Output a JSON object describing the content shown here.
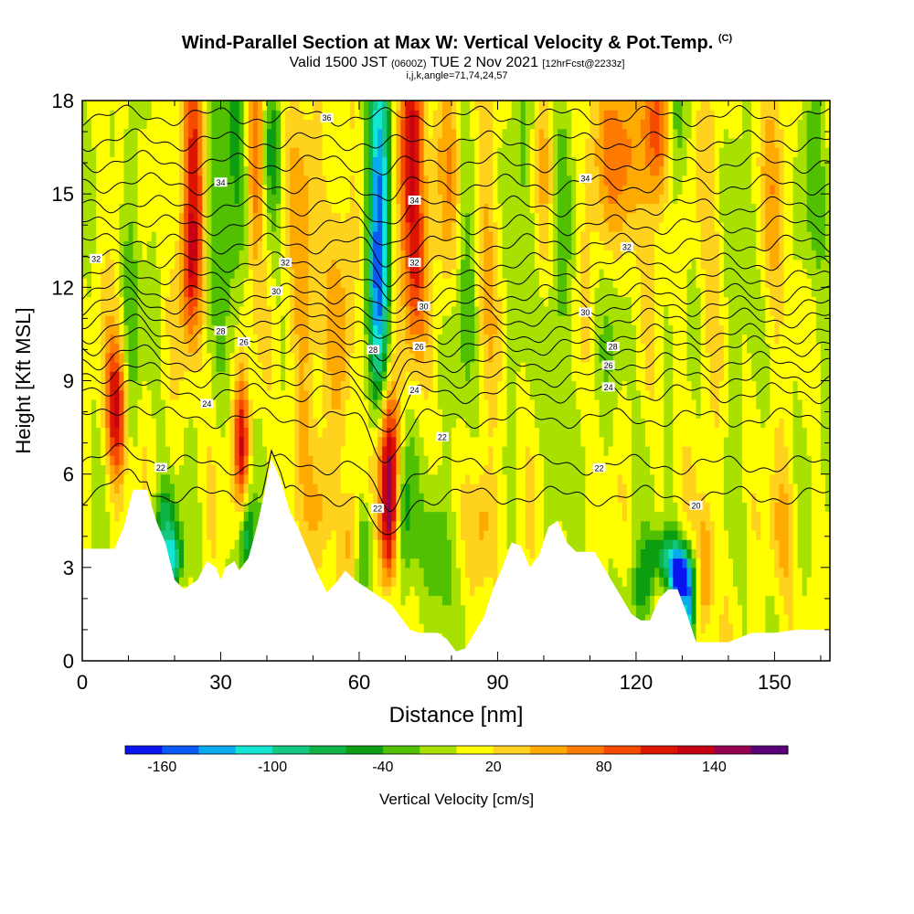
{
  "header": {
    "title_main": "Wind-Parallel Section at Max W: Vertical Velocity & Pot.Temp.",
    "title_mark": "(C)",
    "sub_a": "Valid 1500 JST",
    "sub_b": "(0600Z)",
    "sub_c": "TUE 2 Nov 2021",
    "sub_d": "[12hrFcst@2233z]",
    "sub_line2": "i,j,k,angle=71,74,24,57"
  },
  "colors": {
    "scale": [
      "#0a14f0",
      "#0a5af5",
      "#0aaaf0",
      "#10e6d2",
      "#14c882",
      "#0fb446",
      "#0c9e10",
      "#50c000",
      "#a8e000",
      "#ffff00",
      "#ffd21e",
      "#ffaa00",
      "#ff7a00",
      "#f54a00",
      "#dc1400",
      "#c80014",
      "#960050",
      "#5a0078"
    ],
    "terrain": "#ffffff",
    "contour": "#000000"
  },
  "chart_data": {
    "type": "heatmap",
    "xlabel": "Distance [nm]",
    "ylabel": "Height [Kft MSL]",
    "xlim": [
      0,
      162
    ],
    "ylim": [
      0,
      18
    ],
    "xticks": [
      "0",
      "30",
      "60",
      "90",
      "120",
      "150"
    ],
    "yticks": [
      "0",
      "3",
      "6",
      "9",
      "12",
      "15",
      "18"
    ],
    "colorbar": {
      "label": "Vertical Velocity [cm/s]",
      "tick_labels": [
        "-160",
        "-100",
        "-40",
        "20",
        "80",
        "140"
      ],
      "levels": [
        -180,
        -160,
        -140,
        -120,
        -100,
        -80,
        -60,
        -40,
        -20,
        0,
        20,
        40,
        60,
        80,
        100,
        120,
        140,
        160
      ]
    },
    "terrain_profile": [
      [
        0,
        3.6
      ],
      [
        7,
        3.6
      ],
      [
        9,
        4.3
      ],
      [
        11,
        5.5
      ],
      [
        14,
        5.5
      ],
      [
        16,
        4.5
      ],
      [
        18,
        3.8
      ],
      [
        20,
        2.6
      ],
      [
        22,
        2.3
      ],
      [
        25,
        2.6
      ],
      [
        27,
        3.2
      ],
      [
        29,
        3.0
      ],
      [
        30,
        2.6
      ],
      [
        31,
        3.0
      ],
      [
        33,
        3.2
      ],
      [
        34,
        2.9
      ],
      [
        35,
        3.1
      ],
      [
        36,
        3.3
      ],
      [
        38,
        4.4
      ],
      [
        40,
        5.8
      ],
      [
        41,
        6.5
      ],
      [
        43,
        5.8
      ],
      [
        45,
        4.8
      ],
      [
        47,
        4.2
      ],
      [
        49,
        3.5
      ],
      [
        51,
        2.8
      ],
      [
        53,
        2.2
      ],
      [
        55,
        2.5
      ],
      [
        57,
        2.9
      ],
      [
        59,
        2.6
      ],
      [
        61,
        2.4
      ],
      [
        63,
        2.2
      ],
      [
        65,
        2.0
      ],
      [
        67,
        1.8
      ],
      [
        69,
        1.4
      ],
      [
        71,
        1.0
      ],
      [
        73,
        0.9
      ],
      [
        75,
        0.9
      ],
      [
        77,
        0.9
      ],
      [
        79,
        0.7
      ],
      [
        81,
        0.3
      ],
      [
        83,
        0.4
      ],
      [
        85,
        0.9
      ],
      [
        87,
        1.4
      ],
      [
        89,
        2.3
      ],
      [
        91,
        3.0
      ],
      [
        93,
        3.8
      ],
      [
        95,
        3.7
      ],
      [
        97,
        3.0
      ],
      [
        99,
        3.4
      ],
      [
        101,
        4.3
      ],
      [
        103,
        4.5
      ],
      [
        105,
        3.8
      ],
      [
        107,
        3.5
      ],
      [
        109,
        3.5
      ],
      [
        111,
        3.5
      ],
      [
        113,
        3.0
      ],
      [
        115,
        2.5
      ],
      [
        117,
        2.0
      ],
      [
        119,
        1.5
      ],
      [
        121,
        1.3
      ],
      [
        123,
        1.3
      ],
      [
        125,
        2.0
      ],
      [
        127,
        2.3
      ],
      [
        129,
        2.3
      ],
      [
        131,
        1.5
      ],
      [
        133,
        0.6
      ],
      [
        135,
        0.6
      ],
      [
        140,
        0.6
      ],
      [
        145,
        0.9
      ],
      [
        150,
        0.9
      ],
      [
        155,
        1.0
      ],
      [
        162,
        1.0
      ]
    ],
    "velocity_cells": [
      {
        "x": 7.5,
        "z": 8.0,
        "w": 120,
        "sx": 1.6,
        "sz": 1.6
      },
      {
        "x": 8,
        "z": 14.0,
        "w": 20,
        "sx": 2.0,
        "sz": 3.0
      },
      {
        "x": 10.5,
        "z": 13.0,
        "w": -50,
        "sx": 1.4,
        "sz": 4.0
      },
      {
        "x": 18,
        "z": 4.3,
        "w": -70,
        "sx": 2.0,
        "sz": 0.9
      },
      {
        "x": 20,
        "z": 3.2,
        "w": -90,
        "sx": 1.5,
        "sz": 0.6
      },
      {
        "x": 24,
        "z": 16.0,
        "w": 100,
        "sx": 2.0,
        "sz": 3.0
      },
      {
        "x": 23.5,
        "z": 12.5,
        "w": 70,
        "sx": 1.5,
        "sz": 1.7
      },
      {
        "x": 29,
        "z": 16.0,
        "w": -45,
        "sx": 2.2,
        "sz": 3.0
      },
      {
        "x": 33,
        "z": 16.0,
        "w": -50,
        "sx": 1.5,
        "sz": 3.5
      },
      {
        "x": 34.5,
        "z": 7.0,
        "w": 110,
        "sx": 1.2,
        "sz": 1.6
      },
      {
        "x": 35.5,
        "z": 4.0,
        "w": -90,
        "sx": 1.2,
        "sz": 0.9
      },
      {
        "x": 37.5,
        "z": 16.0,
        "w": 80,
        "sx": 1.3,
        "sz": 2.5
      },
      {
        "x": 41,
        "z": 16.5,
        "w": -45,
        "sx": 1.5,
        "sz": 2.0
      },
      {
        "x": 48,
        "z": 12.0,
        "w": 50,
        "sx": 2.5,
        "sz": 4.0
      },
      {
        "x": 52,
        "z": 5.0,
        "w": 45,
        "sx": 1.8,
        "sz": 1.5
      },
      {
        "x": 56,
        "z": 12.0,
        "w": 40,
        "sx": 2.0,
        "sz": 4.0
      },
      {
        "x": 58.5,
        "z": 4.0,
        "w": 55,
        "sx": 1.5,
        "sz": 1.2
      },
      {
        "x": 61,
        "z": 3.8,
        "w": -60,
        "sx": 1.5,
        "sz": 1.1
      },
      {
        "x": 64.5,
        "z": 15.5,
        "w": -150,
        "sx": 1.7,
        "sz": 3.5
      },
      {
        "x": 64,
        "z": 11.0,
        "w": -60,
        "sx": 1.4,
        "sz": 2.5
      },
      {
        "x": 66.5,
        "z": 6.5,
        "w": 135,
        "sx": 1.7,
        "sz": 1.7
      },
      {
        "x": 66.5,
        "z": 4.0,
        "w": 90,
        "sx": 1.3,
        "sz": 1.3
      },
      {
        "x": 69.5,
        "z": 5.0,
        "w": -60,
        "sx": 1.5,
        "sz": 2.0
      },
      {
        "x": 71,
        "z": 16.5,
        "w": 125,
        "sx": 2.0,
        "sz": 2.5
      },
      {
        "x": 72,
        "z": 12.5,
        "w": 70,
        "sx": 1.8,
        "sz": 2.0
      },
      {
        "x": 77,
        "z": 3.5,
        "w": -55,
        "sx": 2.0,
        "sz": 1.5
      },
      {
        "x": 79,
        "z": 15.5,
        "w": 45,
        "sx": 2.5,
        "sz": 3.0
      },
      {
        "x": 83,
        "z": 13.0,
        "w": -40,
        "sx": 2.0,
        "sz": 4.0
      },
      {
        "x": 87,
        "z": 4.5,
        "w": 55,
        "sx": 2.0,
        "sz": 1.5
      },
      {
        "x": 88,
        "z": 14.5,
        "w": 40,
        "sx": 2.5,
        "sz": 3.5
      },
      {
        "x": 95,
        "z": 15.0,
        "w": -40,
        "sx": 2.5,
        "sz": 3.0
      },
      {
        "x": 100,
        "z": 15.0,
        "w": 40,
        "sx": 2.0,
        "sz": 3.0
      },
      {
        "x": 103,
        "z": 12.0,
        "w": -40,
        "sx": 2.0,
        "sz": 4.0
      },
      {
        "x": 113,
        "z": 16.0,
        "w": 50,
        "sx": 3.0,
        "sz": 3.0
      },
      {
        "x": 115,
        "z": 13.0,
        "w": -35,
        "sx": 2.5,
        "sz": 3.0
      },
      {
        "x": 118,
        "z": 16.0,
        "w": 60,
        "sx": 2.5,
        "sz": 2.5
      },
      {
        "x": 121,
        "z": 2.2,
        "w": -50,
        "sx": 2.0,
        "sz": 0.9
      },
      {
        "x": 124.5,
        "z": 17.0,
        "w": 100,
        "sx": 2.0,
        "sz": 2.0
      },
      {
        "x": 126.5,
        "z": 3.4,
        "w": -70,
        "sx": 3.0,
        "sz": 0.6
      },
      {
        "x": 128.5,
        "z": 17.0,
        "w": -50,
        "sx": 1.5,
        "sz": 2.0
      },
      {
        "x": 129.5,
        "z": 2.4,
        "w": -130,
        "sx": 1.6,
        "sz": 0.6
      },
      {
        "x": 130,
        "z": 3.0,
        "w": -80,
        "sx": 2.0,
        "sz": 0.6
      },
      {
        "x": 131.5,
        "z": 1.5,
        "w": -100,
        "sx": 0.8,
        "sz": 0.8
      },
      {
        "x": 135,
        "z": 3.0,
        "w": 70,
        "sx": 1.2,
        "sz": 1.4
      },
      {
        "x": 137,
        "z": 14.0,
        "w": 30,
        "sx": 2.5,
        "sz": 4.0
      },
      {
        "x": 142,
        "z": 12.5,
        "w": -30,
        "sx": 3.0,
        "sz": 3.0
      },
      {
        "x": 150,
        "z": 14.5,
        "w": 35,
        "sx": 3.0,
        "sz": 3.5
      },
      {
        "x": 152,
        "z": 4.0,
        "w": 40,
        "sx": 2.0,
        "sz": 1.5
      },
      {
        "x": 158,
        "z": 15.0,
        "w": -25,
        "sx": 3.0,
        "sz": 4.0
      }
    ],
    "theta_contours": [
      {
        "base": 5.3,
        "label": "20",
        "label_x": 133
      },
      {
        "base": 6.3,
        "label": "22",
        "label_x": 17
      },
      {
        "base": 7.8
      },
      {
        "base": 8.6,
        "label": "24",
        "label_x": 27
      },
      {
        "base": 9.1
      },
      {
        "base": 9.6
      },
      {
        "base": 10.1,
        "label": "26",
        "label_x": 35
      },
      {
        "base": 10.5,
        "label": "28",
        "label_x": 30
      },
      {
        "base": 11.0
      },
      {
        "base": 11.4
      },
      {
        "base": 11.8,
        "label": "30",
        "label_x": 42
      },
      {
        "base": 12.3
      },
      {
        "base": 12.8,
        "label": "32",
        "label_x": 3
      },
      {
        "base": 13.4
      },
      {
        "base": 14.0
      },
      {
        "base": 14.6
      },
      {
        "base": 15.3,
        "label": "34",
        "label_x": 30
      },
      {
        "base": 16.0
      },
      {
        "base": 16.7
      },
      {
        "base": 17.5,
        "label": "36",
        "label_x": 53
      }
    ],
    "extra_contour_labels": [
      {
        "text": "22",
        "x": 64,
        "z": 4.9
      },
      {
        "text": "22",
        "x": 78,
        "z": 7.2
      },
      {
        "text": "22",
        "x": 112,
        "z": 6.2
      },
      {
        "text": "24",
        "x": 72,
        "z": 8.7
      },
      {
        "text": "24",
        "x": 114,
        "z": 8.8
      },
      {
        "text": "26",
        "x": 114,
        "z": 9.5
      },
      {
        "text": "26",
        "x": 73,
        "z": 10.1
      },
      {
        "text": "28",
        "x": 63,
        "z": 10.0
      },
      {
        "text": "28",
        "x": 115,
        "z": 10.1
      },
      {
        "text": "30",
        "x": 74,
        "z": 11.4
      },
      {
        "text": "30",
        "x": 109,
        "z": 11.2
      },
      {
        "text": "32",
        "x": 72,
        "z": 12.8
      },
      {
        "text": "32",
        "x": 44,
        "z": 12.8
      },
      {
        "text": "32",
        "x": 118,
        "z": 13.3
      },
      {
        "text": "34",
        "x": 72,
        "z": 14.8
      },
      {
        "text": "34",
        "x": 109,
        "z": 15.5
      }
    ]
  }
}
